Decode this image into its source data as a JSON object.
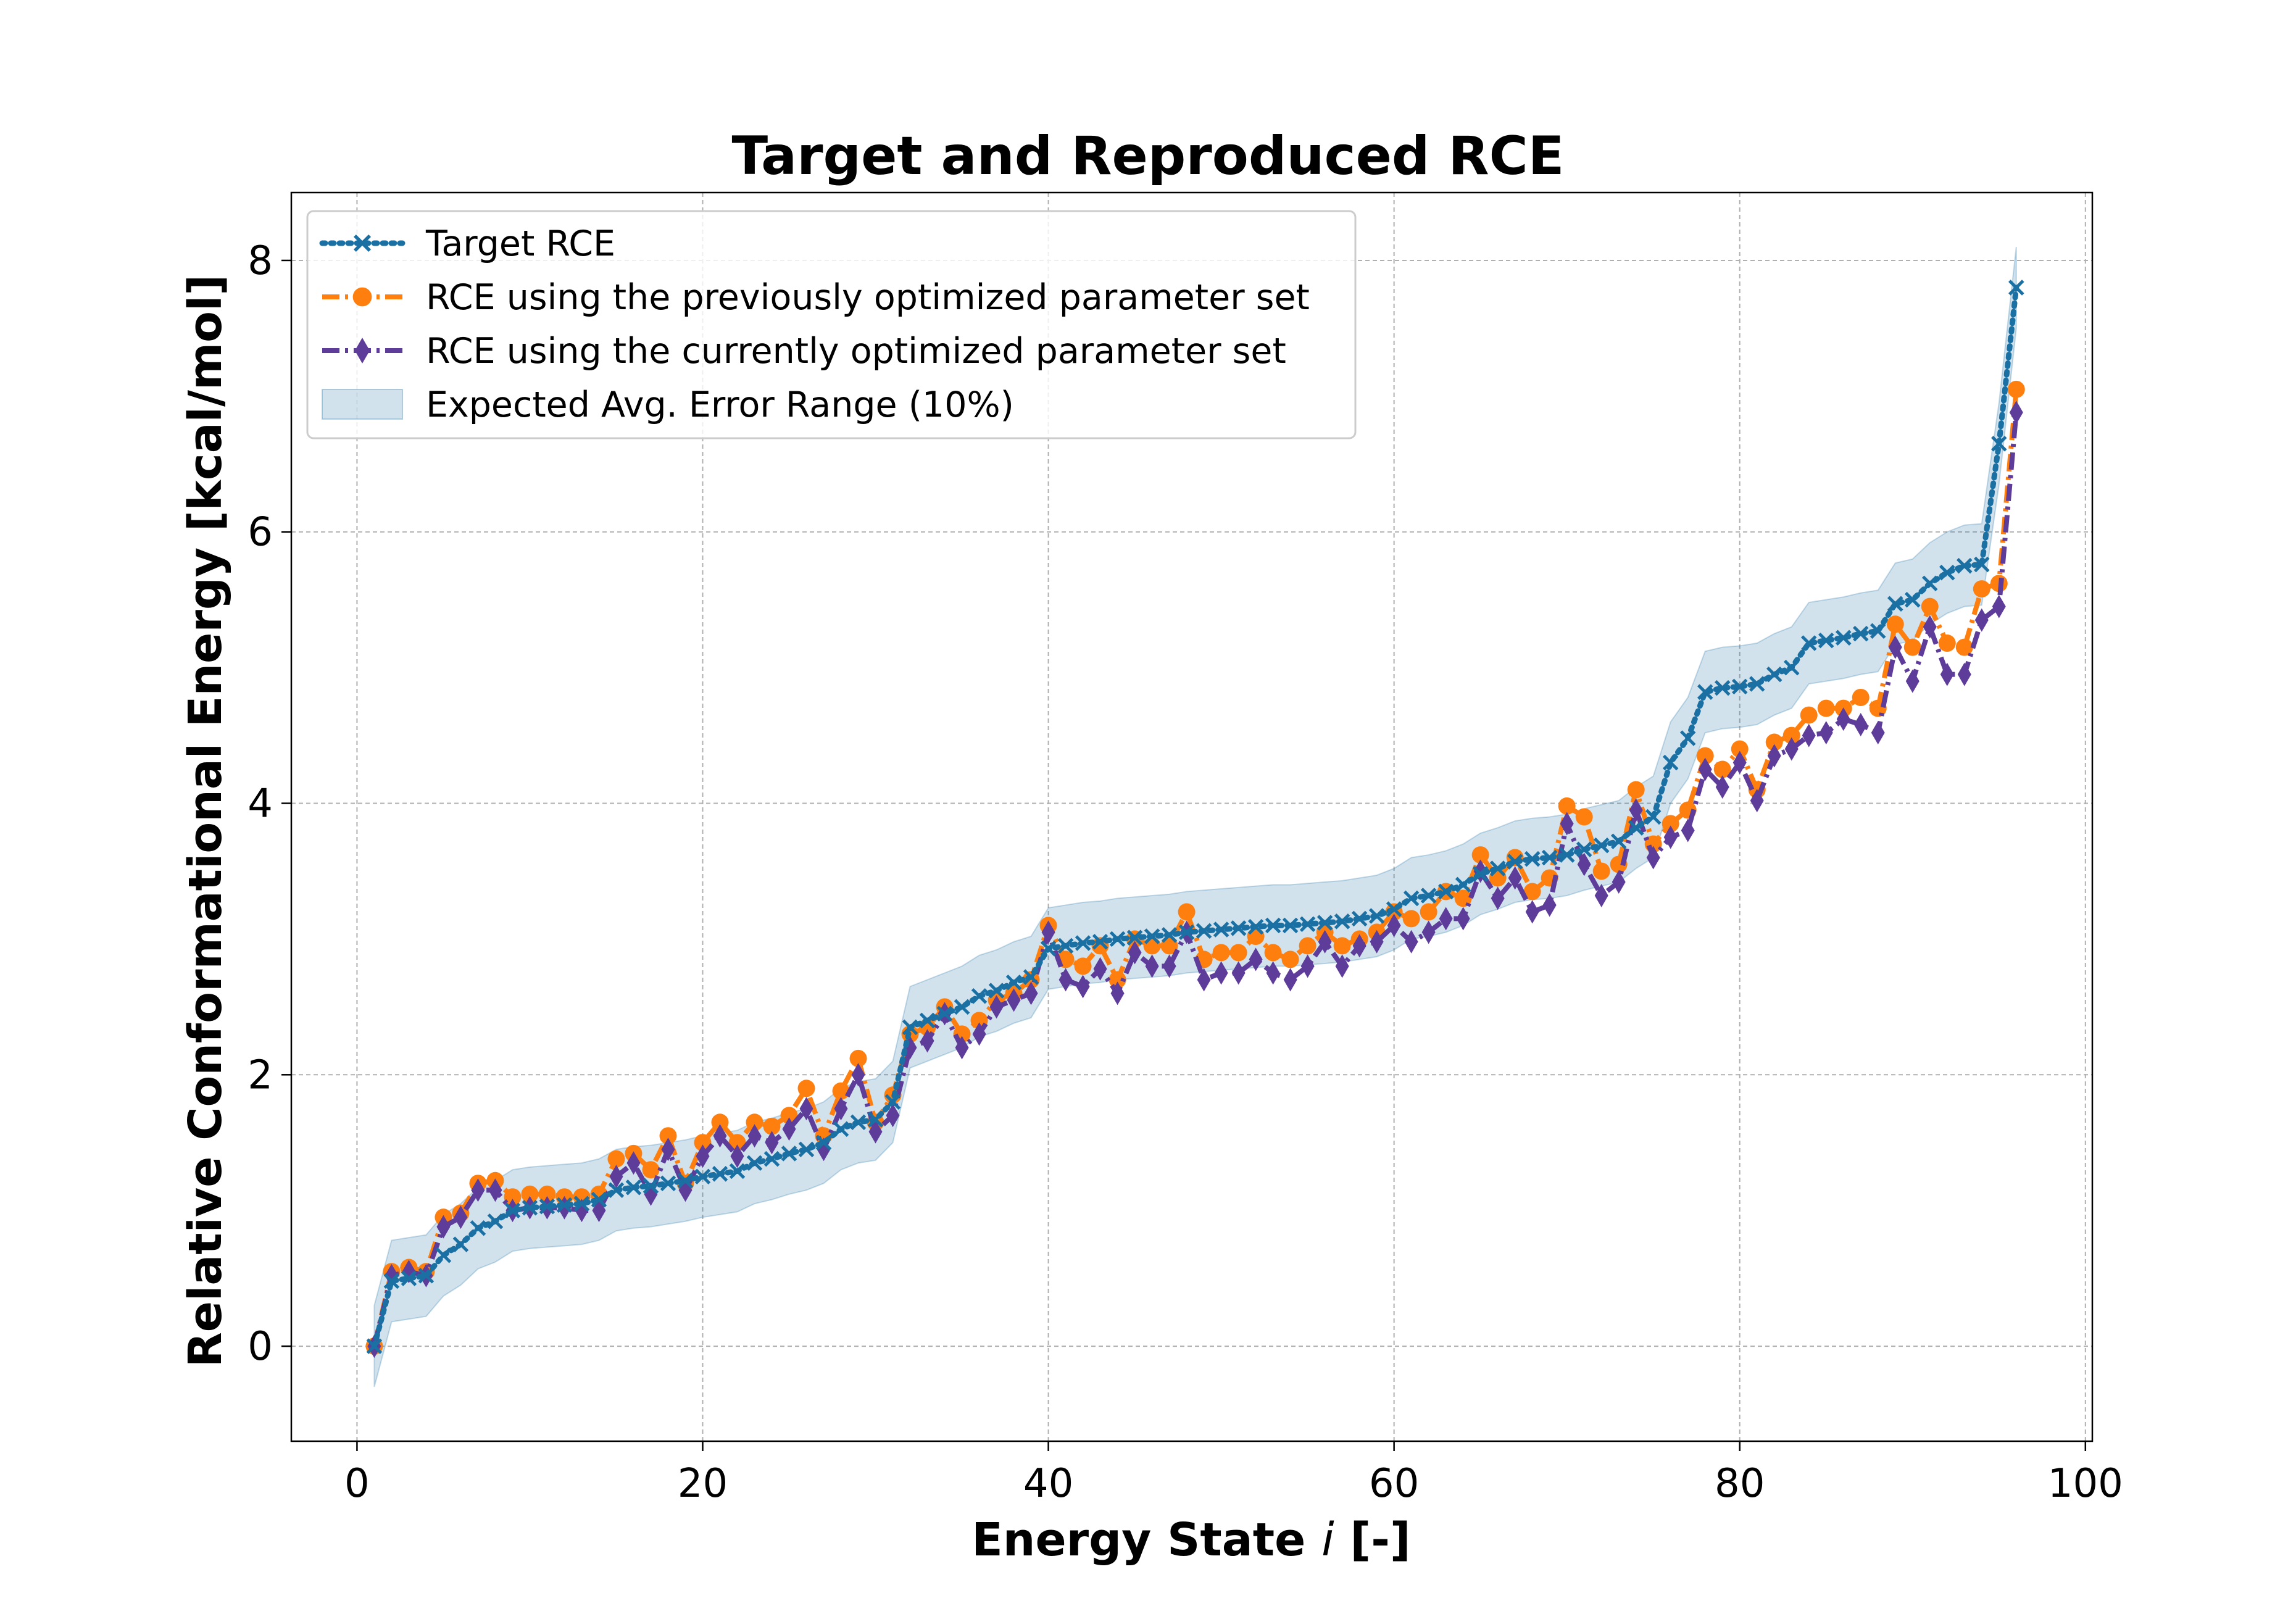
{
  "chart_data": {
    "type": "line",
    "title": "Target and Reproduced RCE",
    "xlabel_parts": [
      "Energy State ",
      "i",
      " [-]"
    ],
    "ylabel": "Relative Conformational Energy [kcal/mol]",
    "xlim": [
      -3.8,
      100.4
    ],
    "ylim": [
      -0.7,
      8.5
    ],
    "xticks": [
      0,
      20,
      40,
      60,
      80,
      100
    ],
    "yticks": [
      0,
      2,
      4,
      6,
      8
    ],
    "xtick_labels": [
      "0",
      "20",
      "40",
      "60",
      "80",
      "100"
    ],
    "ytick_labels": [
      "0",
      "2",
      "4",
      "6",
      "8"
    ],
    "grid": true,
    "legend_position": "top-left",
    "x": [
      1,
      2,
      3,
      4,
      5,
      6,
      7,
      8,
      9,
      10,
      11,
      12,
      13,
      14,
      15,
      16,
      17,
      18,
      19,
      20,
      21,
      22,
      23,
      24,
      25,
      26,
      27,
      28,
      29,
      30,
      31,
      32,
      33,
      34,
      35,
      36,
      37,
      38,
      39,
      40,
      41,
      42,
      43,
      44,
      45,
      46,
      47,
      48,
      49,
      50,
      51,
      52,
      53,
      54,
      55,
      56,
      57,
      58,
      59,
      60,
      61,
      62,
      63,
      64,
      65,
      66,
      67,
      68,
      69,
      70,
      71,
      72,
      73,
      74,
      75,
      76,
      77,
      78,
      79,
      80,
      81,
      82,
      83,
      84,
      85,
      86,
      87,
      88,
      89,
      90,
      91,
      92,
      93,
      94,
      95,
      96
    ],
    "series": [
      {
        "name": "Target RCE",
        "color": "#1a6fa3",
        "marker": "x",
        "linestyle": "dotted",
        "values": [
          0.0,
          0.48,
          0.5,
          0.52,
          0.67,
          0.75,
          0.87,
          0.92,
          1.0,
          1.02,
          1.03,
          1.04,
          1.05,
          1.08,
          1.15,
          1.17,
          1.18,
          1.2,
          1.22,
          1.25,
          1.27,
          1.29,
          1.35,
          1.38,
          1.42,
          1.45,
          1.5,
          1.6,
          1.65,
          1.67,
          1.8,
          2.35,
          2.4,
          2.45,
          2.5,
          2.58,
          2.62,
          2.68,
          2.72,
          2.93,
          2.95,
          2.97,
          2.98,
          3.0,
          3.01,
          3.02,
          3.03,
          3.05,
          3.06,
          3.07,
          3.08,
          3.09,
          3.1,
          3.1,
          3.11,
          3.12,
          3.13,
          3.15,
          3.17,
          3.22,
          3.3,
          3.32,
          3.35,
          3.4,
          3.48,
          3.52,
          3.57,
          3.59,
          3.6,
          3.62,
          3.66,
          3.69,
          3.72,
          3.82,
          3.9,
          4.3,
          4.48,
          4.82,
          4.85,
          4.86,
          4.88,
          4.95,
          5.0,
          5.18,
          5.2,
          5.22,
          5.25,
          5.27,
          5.47,
          5.5,
          5.62,
          5.7,
          5.75,
          5.76,
          6.65,
          7.8
        ]
      },
      {
        "name": "RCE using the previously optimized parameter set",
        "color": "#ff7f0e",
        "marker": "o",
        "linestyle": "dashdot",
        "values": [
          0.0,
          0.55,
          0.58,
          0.55,
          0.95,
          0.98,
          1.2,
          1.22,
          1.1,
          1.12,
          1.12,
          1.1,
          1.1,
          1.12,
          1.38,
          1.42,
          1.3,
          1.55,
          1.2,
          1.5,
          1.65,
          1.5,
          1.65,
          1.62,
          1.7,
          1.9,
          1.55,
          1.88,
          2.12,
          1.65,
          1.85,
          2.3,
          2.35,
          2.5,
          2.3,
          2.4,
          2.55,
          2.6,
          2.7,
          3.1,
          2.85,
          2.8,
          2.95,
          2.7,
          3.0,
          2.95,
          2.95,
          3.2,
          2.85,
          2.9,
          2.9,
          3.02,
          2.9,
          2.85,
          2.95,
          3.05,
          2.95,
          3.0,
          3.05,
          3.2,
          3.15,
          3.2,
          3.35,
          3.3,
          3.62,
          3.45,
          3.6,
          3.35,
          3.45,
          3.98,
          3.9,
          3.5,
          3.55,
          4.1,
          3.7,
          3.85,
          3.95,
          4.35,
          4.25,
          4.4,
          4.1,
          4.45,
          4.5,
          4.65,
          4.7,
          4.7,
          4.78,
          4.7,
          5.32,
          5.15,
          5.45,
          5.18,
          5.15,
          5.58,
          5.62,
          7.05
        ]
      },
      {
        "name": "RCE using the currently optimized parameter set",
        "color": "#5e3c99",
        "marker": "d",
        "linestyle": "dashdot",
        "values": [
          0.0,
          0.52,
          0.55,
          0.52,
          0.88,
          0.95,
          1.15,
          1.15,
          1.0,
          1.02,
          1.02,
          1.02,
          1.0,
          1.0,
          1.25,
          1.35,
          1.12,
          1.45,
          1.15,
          1.4,
          1.55,
          1.4,
          1.55,
          1.5,
          1.6,
          1.75,
          1.45,
          1.75,
          2.0,
          1.58,
          1.7,
          2.2,
          2.25,
          2.45,
          2.2,
          2.3,
          2.5,
          2.55,
          2.6,
          3.05,
          2.7,
          2.65,
          2.78,
          2.6,
          2.9,
          2.8,
          2.8,
          3.05,
          2.7,
          2.75,
          2.75,
          2.85,
          2.75,
          2.7,
          2.8,
          2.98,
          2.8,
          2.95,
          2.98,
          3.1,
          2.98,
          3.05,
          3.15,
          3.15,
          3.5,
          3.3,
          3.45,
          3.2,
          3.25,
          3.85,
          3.55,
          3.32,
          3.42,
          3.95,
          3.6,
          3.75,
          3.8,
          4.25,
          4.12,
          4.3,
          4.02,
          4.35,
          4.4,
          4.5,
          4.52,
          4.62,
          4.58,
          4.52,
          5.15,
          4.9,
          5.3,
          4.95,
          4.95,
          5.35,
          5.45,
          6.88
        ]
      }
    ],
    "band": {
      "name": "Expected Avg. Error Range (10%)",
      "color": "#1a6fa3",
      "opacity": 0.2,
      "lower": [
        -0.3,
        0.18,
        0.2,
        0.22,
        0.37,
        0.45,
        0.57,
        0.62,
        0.7,
        0.72,
        0.73,
        0.74,
        0.75,
        0.78,
        0.85,
        0.87,
        0.88,
        0.9,
        0.92,
        0.95,
        0.97,
        0.99,
        1.05,
        1.08,
        1.12,
        1.15,
        1.2,
        1.3,
        1.35,
        1.37,
        1.5,
        2.05,
        2.1,
        2.15,
        2.2,
        2.28,
        2.32,
        2.38,
        2.42,
        2.63,
        2.65,
        2.67,
        2.68,
        2.7,
        2.71,
        2.72,
        2.73,
        2.75,
        2.76,
        2.77,
        2.78,
        2.79,
        2.8,
        2.8,
        2.81,
        2.82,
        2.83,
        2.85,
        2.87,
        2.92,
        3.0,
        3.02,
        3.05,
        3.1,
        3.18,
        3.22,
        3.27,
        3.29,
        3.3,
        3.32,
        3.36,
        3.39,
        3.42,
        3.52,
        3.6,
        4.0,
        4.18,
        4.52,
        4.55,
        4.56,
        4.58,
        4.65,
        4.7,
        4.88,
        4.9,
        4.92,
        4.95,
        4.97,
        5.17,
        5.2,
        5.32,
        5.4,
        5.45,
        5.46,
        6.35,
        7.5
      ],
      "upper": [
        0.3,
        0.78,
        0.8,
        0.82,
        0.97,
        1.05,
        1.17,
        1.22,
        1.3,
        1.32,
        1.33,
        1.34,
        1.35,
        1.38,
        1.45,
        1.47,
        1.48,
        1.5,
        1.52,
        1.55,
        1.57,
        1.59,
        1.65,
        1.68,
        1.72,
        1.75,
        1.8,
        1.9,
        1.95,
        1.97,
        2.1,
        2.65,
        2.7,
        2.75,
        2.8,
        2.88,
        2.92,
        2.98,
        3.02,
        3.23,
        3.25,
        3.27,
        3.28,
        3.3,
        3.31,
        3.32,
        3.33,
        3.35,
        3.36,
        3.37,
        3.38,
        3.39,
        3.4,
        3.4,
        3.41,
        3.42,
        3.43,
        3.45,
        3.47,
        3.52,
        3.6,
        3.62,
        3.65,
        3.7,
        3.78,
        3.82,
        3.87,
        3.89,
        3.9,
        3.92,
        3.96,
        3.99,
        4.02,
        4.12,
        4.2,
        4.6,
        4.78,
        5.12,
        5.15,
        5.16,
        5.18,
        5.25,
        5.3,
        5.48,
        5.5,
        5.52,
        5.55,
        5.57,
        5.77,
        5.8,
        5.92,
        6.0,
        6.05,
        6.06,
        6.95,
        8.1
      ]
    }
  }
}
